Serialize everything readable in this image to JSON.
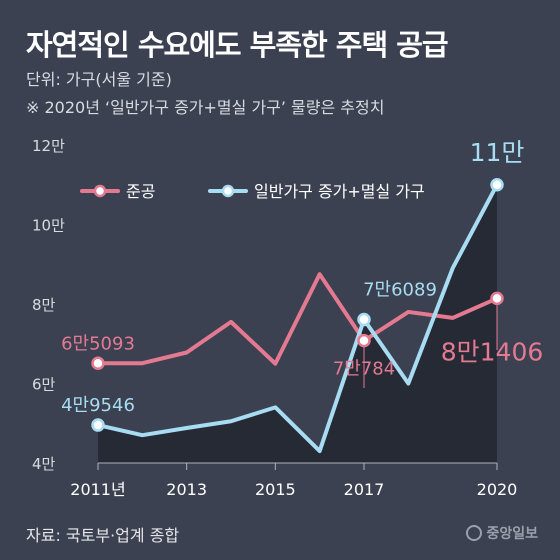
{
  "header": {
    "title": "자연적인 수요에도 부족한 주택 공급",
    "subtitle": "단위: 가구(서울 기준)",
    "note": "※ 2020년 ‘일반가구 증가+멸실 가구’ 물량은 추정치"
  },
  "footer": {
    "source": "자료: 국토부·업계 종합",
    "logo": "중앙일보"
  },
  "chart_data": {
    "type": "line",
    "x": [
      2011,
      2012,
      2013,
      2014,
      2015,
      2016,
      2017,
      2018,
      2019,
      2020
    ],
    "x_tick_values": [
      2011,
      2013,
      2015,
      2017,
      2020
    ],
    "x_tick_labels": [
      "2011년",
      "2013",
      "2015",
      "2017",
      "2020"
    ],
    "ylim": [
      40000,
      120000
    ],
    "y_tick_values": [
      40000,
      60000,
      80000,
      100000,
      120000
    ],
    "y_tick_labels": [
      "4만",
      "6만",
      "8만",
      "10만",
      "12만"
    ],
    "grid": false,
    "legend_position": "top-left",
    "series": [
      {
        "name": "준공",
        "color": "#e47a92",
        "values": [
          65093,
          65100,
          67800,
          75500,
          65000,
          87500,
          70784,
          78000,
          76500,
          81406
        ]
      },
      {
        "name": "일반가구 증가+멸실 가구",
        "color": "#a7dcf3",
        "values": [
          49546,
          47000,
          48800,
          50500,
          54000,
          43000,
          76089,
          60000,
          89000,
          110000
        ]
      }
    ],
    "annotations": [
      {
        "text": "6만5093",
        "series": 0,
        "x": 2011,
        "anchor": "above",
        "size": "medium"
      },
      {
        "text": "7만784",
        "series": 0,
        "x": 2017,
        "anchor": "below",
        "size": "medium"
      },
      {
        "text": "8만1406",
        "series": 0,
        "x": 2020,
        "anchor": "below-left",
        "size": "large"
      },
      {
        "text": "4만9546",
        "series": 1,
        "x": 2011,
        "anchor": "above",
        "size": "medium"
      },
      {
        "text": "7만6089",
        "series": 1,
        "x": 2017,
        "anchor": "above-right",
        "size": "medium"
      },
      {
        "text": "11만",
        "series": 1,
        "x": 2020,
        "anchor": "above",
        "size": "large"
      }
    ]
  }
}
